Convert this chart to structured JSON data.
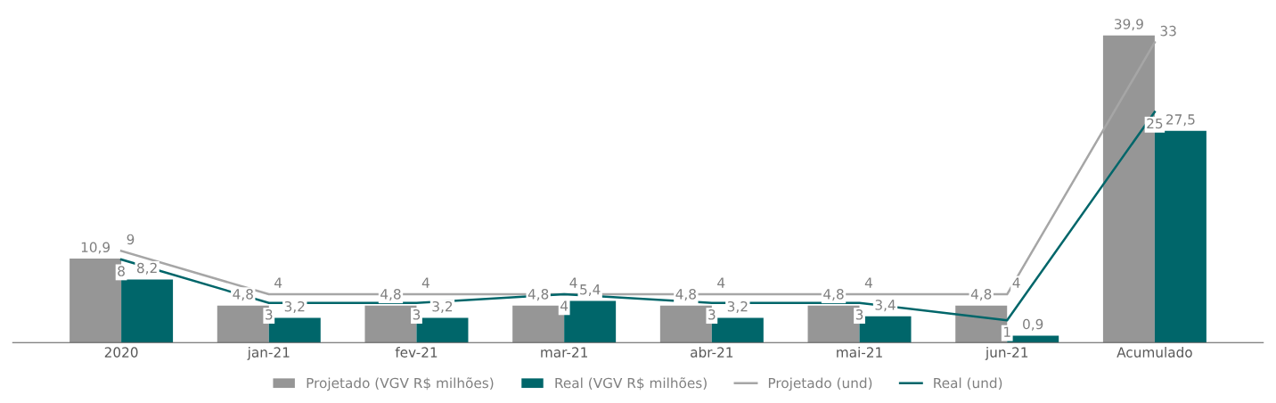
{
  "chart_data": {
    "type": "bar",
    "categories": [
      "2020",
      "jan-21",
      "fev-21",
      "mar-21",
      "abr-21",
      "mai-21",
      "jun-21",
      "Acumulado"
    ],
    "series": [
      {
        "name": "Projetado (VGV R$ milhões)",
        "color": "#969696",
        "values": [
          10.9,
          4.8,
          4.8,
          4.8,
          4.8,
          4.8,
          4.8,
          39.9
        ],
        "value_labels": [
          "10,9",
          "4,8",
          "4,8",
          "4,8",
          "4,8",
          "4,8",
          "4,8",
          "39,9"
        ]
      },
      {
        "name": "Real (VGV R$ milhões)",
        "color": "#00666a",
        "values": [
          8.2,
          3.2,
          3.2,
          5.4,
          3.2,
          3.4,
          0.9,
          27.5
        ],
        "value_labels": [
          "8,2",
          "3,2",
          "3,2",
          "5,4",
          "3,2",
          "3,4",
          "0,9",
          "27,5"
        ]
      },
      {
        "name": "Projetado (und)",
        "type": "line",
        "axis": "y2",
        "color": "#a6a6a6",
        "values": [
          9,
          4,
          4,
          4,
          4,
          4,
          4,
          33
        ],
        "value_labels": [
          "9",
          "4",
          "4",
          "4",
          "4",
          "4",
          "4",
          "33"
        ]
      },
      {
        "name": "Real (und)",
        "type": "line",
        "axis": "y2",
        "color": "#00666a",
        "values": [
          8,
          3,
          3,
          4,
          3,
          3,
          1,
          25
        ],
        "value_labels": [
          "8",
          "3",
          "3",
          "4",
          "3",
          "3",
          "1",
          "25"
        ]
      }
    ],
    "legend": "bottom",
    "line_style": "solid"
  }
}
